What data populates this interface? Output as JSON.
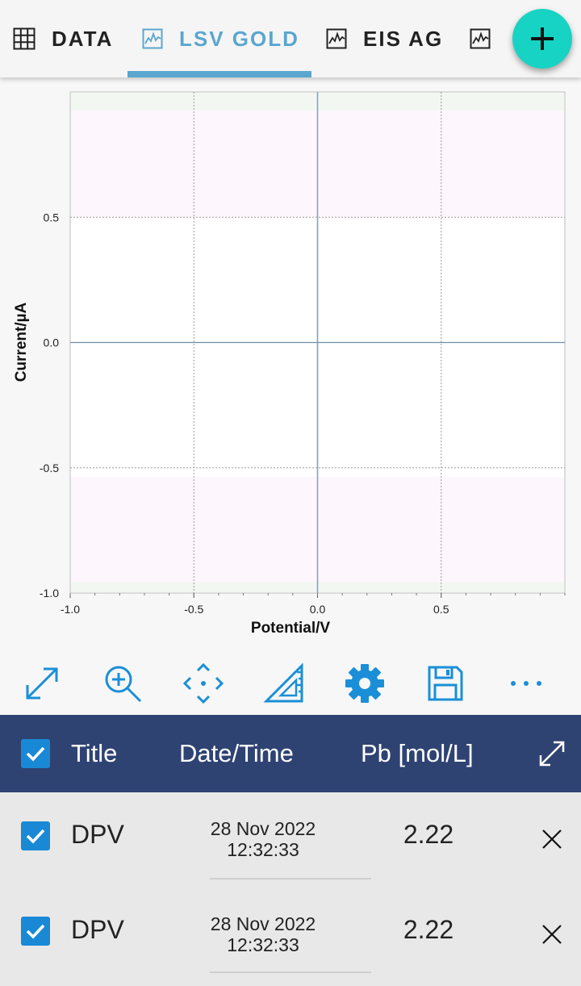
{
  "tabs": [
    {
      "label": "DATA",
      "icon": "grid-icon"
    },
    {
      "label": "LSV GOLD",
      "icon": "chart-icon"
    },
    {
      "label": "EIS AG",
      "icon": "chart-icon"
    },
    {
      "label": "",
      "icon": "chart-icon"
    }
  ],
  "active_tab": "LSV GOLD",
  "colors": {
    "accent": "#5aa6cf",
    "fab": "#17d3c3",
    "table_header": "#2f4373",
    "checkbox": "#1989d6",
    "toolbar_icon": "#1a8fd8"
  },
  "chart_data": {
    "type": "line",
    "xlabel": "Potential/V",
    "ylabel": "Current/µA",
    "xlim": [
      -1.0,
      1.0
    ],
    "ylim": [
      -1.0,
      1.0
    ],
    "xticks": [
      "-1.0",
      "-0.5",
      "0.0",
      "0.5"
    ],
    "yticks": [
      "0.5",
      "0.0",
      "-0.5",
      "-1.0"
    ],
    "series": [],
    "grid": true
  },
  "toolbar": [
    {
      "name": "expand-icon"
    },
    {
      "name": "zoom-in-icon"
    },
    {
      "name": "pan-icon"
    },
    {
      "name": "ruler-icon"
    },
    {
      "name": "settings-icon"
    },
    {
      "name": "save-icon"
    },
    {
      "name": "more-icon"
    }
  ],
  "table": {
    "headers": {
      "title": "Title",
      "datetime": "Date/Time",
      "value": "Pb [mol/L]"
    },
    "rows": [
      {
        "title": "DPV",
        "date": "28 Nov 2022",
        "time": "12:32:33",
        "value": "2.22",
        "checked": true
      },
      {
        "title": "DPV",
        "date": "28 Nov 2022",
        "time": "12:32:33",
        "value": "2.22",
        "checked": true
      }
    ]
  }
}
